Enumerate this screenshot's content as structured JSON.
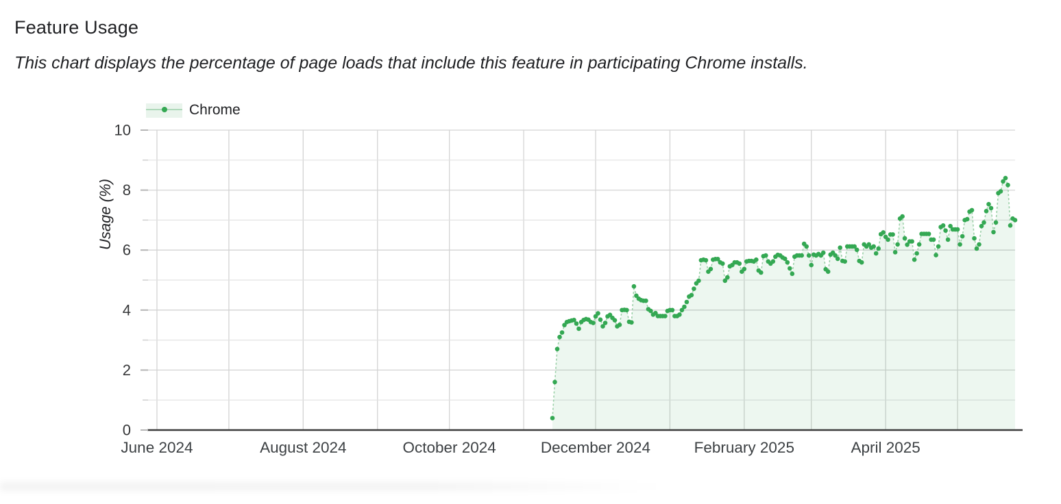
{
  "chart_data": {
    "type": "area",
    "title": "Feature Usage",
    "subtitle": "This chart displays the percentage of page loads that include this feature in participating Chrome installs.",
    "ylabel": "Usage (%)",
    "xlabel": "",
    "ylim": [
      0,
      10
    ],
    "y_ticks_major": [
      0,
      2,
      4,
      6,
      8,
      10
    ],
    "y_ticks_minor": [
      1,
      3,
      5,
      7,
      9
    ],
    "grid": "on",
    "legend_position": "top-left",
    "x_domain": {
      "start_date": "2024-05-28",
      "end_date": "2025-05-25",
      "reference_date": "2024-06-01",
      "start_day": -4,
      "end_day": 358
    },
    "x_ticks": [
      {
        "label": "June 2024",
        "day": 0
      },
      {
        "label": "",
        "day": 30
      },
      {
        "label": "August 2024",
        "day": 61
      },
      {
        "label": "",
        "day": 92
      },
      {
        "label": "October 2024",
        "day": 122
      },
      {
        "label": "",
        "day": 153
      },
      {
        "label": "December 2024",
        "day": 183
      },
      {
        "label": "",
        "day": 214
      },
      {
        "label": "February 2025",
        "day": 245
      },
      {
        "label": "",
        "day": 273
      },
      {
        "label": "April 2025",
        "day": 304
      },
      {
        "label": "",
        "day": 334
      }
    ],
    "series": [
      {
        "name": "Chrome",
        "cadence": "daily",
        "start_date": "2024-11-13",
        "start_day": 165,
        "values": [
          0.4,
          1.6,
          2.7,
          3.1,
          3.25,
          3.5,
          3.6,
          3.63,
          3.65,
          3.67,
          3.55,
          3.38,
          3.6,
          3.67,
          3.7,
          3.68,
          3.6,
          3.57,
          3.79,
          3.89,
          3.68,
          3.46,
          3.57,
          3.79,
          3.84,
          3.74,
          3.66,
          3.46,
          3.51,
          4.0,
          4.01,
          4.0,
          3.61,
          3.59,
          4.79,
          4.48,
          4.38,
          4.33,
          4.31,
          4.31,
          4.03,
          3.97,
          3.85,
          3.9,
          3.8,
          3.8,
          3.8,
          3.8,
          3.97,
          4.0,
          4.0,
          3.8,
          3.8,
          3.85,
          4.0,
          4.11,
          4.27,
          4.45,
          4.5,
          4.71,
          4.89,
          4.98,
          5.66,
          5.68,
          5.66,
          5.28,
          5.37,
          5.68,
          5.7,
          5.7,
          5.59,
          5.55,
          4.98,
          5.09,
          5.46,
          5.5,
          5.59,
          5.59,
          5.55,
          5.28,
          5.37,
          5.62,
          5.64,
          5.64,
          5.62,
          5.68,
          5.32,
          5.25,
          5.8,
          5.82,
          5.62,
          5.55,
          5.62,
          5.78,
          5.84,
          5.82,
          5.75,
          5.71,
          5.59,
          5.39,
          5.21,
          5.78,
          5.82,
          5.82,
          5.82,
          6.21,
          6.12,
          5.82,
          5.5,
          5.85,
          5.82,
          5.87,
          5.82,
          5.91,
          5.36,
          5.28,
          5.85,
          5.91,
          5.82,
          5.71,
          6.08,
          5.64,
          5.62,
          6.12,
          6.12,
          6.12,
          6.12,
          6.01,
          5.64,
          5.59,
          6.19,
          6.12,
          6.19,
          6.08,
          6.12,
          5.89,
          6.05,
          6.53,
          6.59,
          6.44,
          6.35,
          6.52,
          6.52,
          5.93,
          6.19,
          7.05,
          7.12,
          6.39,
          6.18,
          6.29,
          6.29,
          5.68,
          5.89,
          6.19,
          6.54,
          6.54,
          6.54,
          6.54,
          6.35,
          6.35,
          5.83,
          6.12,
          6.77,
          6.82,
          6.65,
          6.35,
          6.8,
          6.69,
          6.69,
          6.69,
          6.19,
          6.46,
          7.0,
          7.03,
          7.28,
          7.33,
          6.39,
          6.05,
          6.19,
          6.8,
          6.92,
          7.3,
          7.53,
          7.4,
          6.6,
          6.92,
          7.9,
          7.96,
          8.29,
          8.4,
          8.17,
          6.82,
          7.05,
          7.0
        ]
      }
    ],
    "colors": {
      "dot": "#34a853",
      "line": "#9bd0a8",
      "fill": "rgba(52,168,83,0.085)",
      "grid_major": "#d3d3d3",
      "grid_minor": "#e2e2e2",
      "axis": "#3c3c3c",
      "tick_text": "#3c4043"
    }
  }
}
